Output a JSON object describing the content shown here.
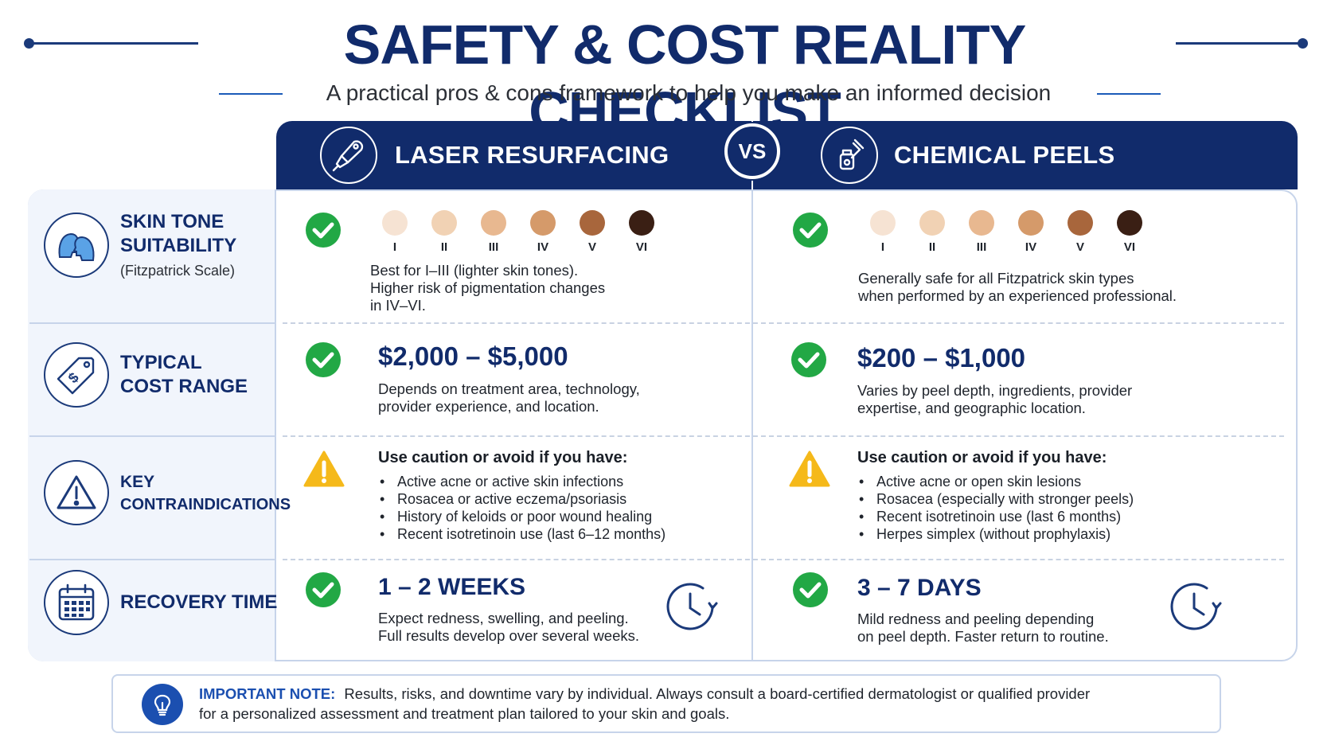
{
  "header": {
    "title": "SAFETY & COST REALITY CHECKLIST",
    "subtitle": "A practical pros & cons framework to help you make an informed decision"
  },
  "columns": {
    "laser": {
      "label": "LASER RESURFACING",
      "icon": "laser-handpiece-icon"
    },
    "vs": "VS",
    "peels": {
      "label": "CHEMICAL PEELS",
      "icon": "dropper-bottle-icon"
    }
  },
  "rows": {
    "skin_tone": {
      "label": "SKIN TONE SUITABILITY",
      "label_line1": "SKIN TONE",
      "label_line2": "SUITABILITY",
      "sublabel": "(Fitzpatrick Scale)",
      "icon": "faces-icon",
      "tones": [
        {
          "label": "I",
          "color": "#f6e3d3"
        },
        {
          "label": "II",
          "color": "#f1d2b4"
        },
        {
          "label": "III",
          "color": "#e8b890"
        },
        {
          "label": "IV",
          "color": "#d59a6a"
        },
        {
          "label": "V",
          "color": "#a8663c"
        },
        {
          "label": "VI",
          "color": "#3a1f14"
        }
      ],
      "laser": {
        "status": "check",
        "desc_l1": "Best for I–III (lighter skin tones).",
        "desc_l2": "Higher risk of pigmentation changes",
        "desc_l3": "in IV–VI."
      },
      "peels": {
        "status": "check",
        "desc_l1": "Generally safe for all Fitzpatrick skin types",
        "desc_l2": "when performed by an experienced professional."
      }
    },
    "cost": {
      "label_line1": "TYPICAL",
      "label_line2": "COST RANGE",
      "icon": "price-tag-icon",
      "laser": {
        "status": "check",
        "price": "$2,000 – $5,000",
        "desc_l1": "Depends on treatment area, technology,",
        "desc_l2": "provider experience, and location."
      },
      "peels": {
        "status": "check",
        "price": "$200 – $1,000",
        "desc_l1": "Varies by peel depth, ingredients, provider",
        "desc_l2": "expertise, and geographic location."
      }
    },
    "contra": {
      "label_line1": "KEY",
      "label_line2": "CONTRAINDICATIONS",
      "icon": "warning-triangle-icon",
      "laser": {
        "status": "warning",
        "heading": "Use caution or avoid if you have:",
        "items": [
          "Active acne or active skin infections",
          "Rosacea or active eczema/psoriasis",
          "History of keloids or poor wound healing",
          "Recent isotretinoin use (last 6–12 months)"
        ]
      },
      "peels": {
        "status": "warning",
        "heading": "Use caution or avoid if you have:",
        "items": [
          "Active acne or open skin lesions",
          "Rosacea (especially with stronger peels)",
          "Recent isotretinoin use (last 6 months)",
          "Herpes simplex (without prophylaxis)"
        ]
      }
    },
    "recovery": {
      "label": "RECOVERY TIME",
      "icon": "calendar-icon",
      "laser": {
        "status": "check",
        "duration": "1 – 2 WEEKS",
        "desc_l1": "Expect redness, swelling, and peeling.",
        "desc_l2": "Full results develop over several weeks.",
        "icon": "clock-icon"
      },
      "peels": {
        "status": "check",
        "duration": "3 – 7 DAYS",
        "desc_l1": "Mild redness and peeling depending",
        "desc_l2": "on peel depth. Faster return to routine.",
        "icon": "clock-icon"
      }
    }
  },
  "note": {
    "label": "IMPORTANT NOTE:",
    "text_l1": "Results, risks, and downtime vary by individual. Always consult a board-certified dermatologist or qualified provider",
    "text_l2": "for a personalized assessment and treatment plan tailored to your skin and goals.",
    "icon": "lightbulb-icon"
  },
  "colors": {
    "navy": "#112b6b",
    "check_green": "#22a845",
    "warning_yellow": "#f5b91a",
    "accent_blue": "#1b4fb0"
  }
}
